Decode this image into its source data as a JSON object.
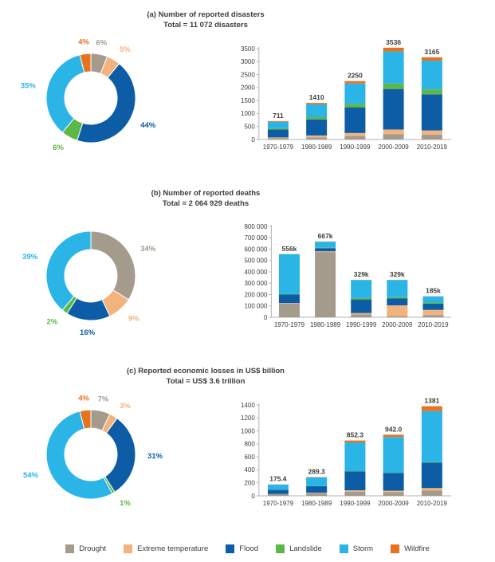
{
  "colors": {
    "drought": "#a49b8d",
    "extreme_temperature": "#f3b37e",
    "flood": "#0c5da5",
    "landslide": "#5db646",
    "storm": "#2ab5e6",
    "wildfire": "#e8731f",
    "text": "#3c3c3b",
    "axis": "#b3b3b3"
  },
  "legend": [
    {
      "key": "drought",
      "label": "Drought"
    },
    {
      "key": "extreme_temperature",
      "label": "Extreme temperature"
    },
    {
      "key": "flood",
      "label": "Flood"
    },
    {
      "key": "landslide",
      "label": "Landslide"
    },
    {
      "key": "storm",
      "label": "Storm"
    },
    {
      "key": "wildfire",
      "label": "Wildfire"
    }
  ],
  "chart_data": [
    {
      "panel": "a",
      "title": "(a) Number of reported disasters",
      "subtitle": "Total = 11 072 disasters",
      "donut": {
        "type": "pie",
        "unit": "percent",
        "slices": [
          {
            "key": "drought",
            "label": "6%",
            "value": 6
          },
          {
            "key": "extreme_temperature",
            "label": "5%",
            "value": 5
          },
          {
            "key": "flood",
            "label": "44%",
            "value": 44
          },
          {
            "key": "landslide",
            "label": "6%",
            "value": 6
          },
          {
            "key": "storm",
            "label": "35%",
            "value": 35
          },
          {
            "key": "wildfire",
            "label": "4%",
            "value": 4
          }
        ]
      },
      "bars": {
        "type": "bar",
        "stacked": true,
        "categories": [
          "1970-1979",
          "1980-1989",
          "1990-1999",
          "2000-2009",
          "2010-2019"
        ],
        "totals": [
          711,
          1410,
          2250,
          3536,
          3165
        ],
        "total_labels": [
          "711",
          "1410",
          "2250",
          "3536",
          "3165"
        ],
        "series": [
          {
            "key": "drought",
            "values": [
              45,
              85,
              135,
              210,
              190
            ]
          },
          {
            "key": "extreme_temperature",
            "values": [
              35,
              70,
              115,
              175,
              160
            ]
          },
          {
            "key": "flood",
            "values": [
              310,
              620,
              990,
              1560,
              1390
            ]
          },
          {
            "key": "landslide",
            "values": [
              45,
              85,
              135,
              210,
              190
            ]
          },
          {
            "key": "storm",
            "values": [
              248,
              494,
              785,
              1240,
              1108
            ]
          },
          {
            "key": "wildfire",
            "values": [
              28,
              56,
              90,
              141,
              127
            ]
          }
        ],
        "y_ticks": [
          0,
          500,
          1000,
          1500,
          2000,
          2500,
          3000,
          3500
        ],
        "y_tick_labels": [
          "0",
          "500",
          "1000",
          "1500",
          "2000",
          "2500",
          "3000",
          "3500"
        ],
        "ymax": 3500
      }
    },
    {
      "panel": "b",
      "title": "(b) Number of reported deaths",
      "subtitle": "Total = 2 064 929 deaths",
      "donut": {
        "type": "pie",
        "unit": "percent",
        "slices": [
          {
            "key": "drought",
            "label": "34%",
            "value": 34
          },
          {
            "key": "extreme_temperature",
            "label": "9%",
            "value": 9
          },
          {
            "key": "flood",
            "label": "16%",
            "value": 16
          },
          {
            "key": "landslide",
            "label": "2%",
            "value": 2
          },
          {
            "key": "storm",
            "label": "39%",
            "value": 39
          },
          {
            "key": "wildfire",
            "label": "",
            "value": 0
          }
        ]
      },
      "bars": {
        "type": "bar",
        "stacked": true,
        "categories": [
          "1970-1979",
          "1980-1989",
          "1990-1999",
          "2000-2009",
          "2010-2019"
        ],
        "totals": [
          556000,
          667000,
          329000,
          329000,
          185000
        ],
        "total_labels": [
          "556k",
          "667k",
          "329k",
          "329k",
          "185k"
        ],
        "series": [
          {
            "key": "drought",
            "values": [
              120000,
              575000,
              25000,
              10000,
              20000
            ]
          },
          {
            "key": "extreme_temperature",
            "values": [
              5000,
              6000,
              12000,
              95000,
              45000
            ]
          },
          {
            "key": "flood",
            "values": [
              75000,
              28000,
              120000,
              60000,
              55000
            ]
          },
          {
            "key": "landslide",
            "values": [
              5000,
              4000,
              12000,
              12000,
              10000
            ]
          },
          {
            "key": "storm",
            "values": [
              350000,
              52000,
              159000,
              151000,
              54000
            ]
          },
          {
            "key": "wildfire",
            "values": [
              1000,
              2000,
              1000,
              1000,
              1000
            ]
          }
        ],
        "y_ticks": [
          0,
          100000,
          200000,
          300000,
          400000,
          500000,
          600000,
          700000,
          800000
        ],
        "y_tick_labels": [
          "0",
          "100 000",
          "200 000",
          "300 000",
          "400 000",
          "500 000",
          "600 000",
          "700 000",
          "800 000"
        ],
        "ymax": 800000
      }
    },
    {
      "panel": "c",
      "title": "(c) Reported economic losses in US$ billion",
      "subtitle": "Total = US$ 3.6 trillion",
      "donut": {
        "type": "pie",
        "unit": "percent",
        "slices": [
          {
            "key": "drought",
            "label": "7%",
            "value": 7
          },
          {
            "key": "extreme_temperature",
            "label": "3%",
            "value": 3
          },
          {
            "key": "flood",
            "label": "31%",
            "value": 31
          },
          {
            "key": "landslide",
            "label": "1%",
            "value": 1
          },
          {
            "key": "storm",
            "label": "54%",
            "value": 54
          },
          {
            "key": "wildfire",
            "label": "4%",
            "value": 4
          }
        ]
      },
      "bars": {
        "type": "bar",
        "stacked": true,
        "categories": [
          "1970-1979",
          "1980-1989",
          "1990-1999",
          "2000-2009",
          "2010-2019"
        ],
        "totals": [
          175.4,
          289.3,
          852.3,
          942.0,
          1381
        ],
        "total_labels": [
          "175.4",
          "289.3",
          "852.3",
          "942.0",
          "1381"
        ],
        "series": [
          {
            "key": "drought",
            "values": [
              25,
              40,
              65,
              55,
              80
            ]
          },
          {
            "key": "extreme_temperature",
            "values": [
              3,
              8,
              20,
              25,
              40
            ]
          },
          {
            "key": "flood",
            "values": [
              65,
              100,
              290,
              270,
              390
            ]
          },
          {
            "key": "landslide",
            "values": [
              1.4,
              2.3,
              5.3,
              6,
              8
            ]
          },
          {
            "key": "storm",
            "values": [
              78,
              133,
              442,
              551,
              788
            ]
          },
          {
            "key": "wildfire",
            "values": [
              3,
              6,
              30,
              35,
              75
            ]
          }
        ],
        "y_ticks": [
          0,
          200,
          400,
          600,
          800,
          1000,
          1200,
          1400
        ],
        "y_tick_labels": [
          "0",
          "200",
          "400",
          "600",
          "800",
          "1000",
          "1200",
          "1400"
        ],
        "ymax": 1400
      }
    }
  ]
}
